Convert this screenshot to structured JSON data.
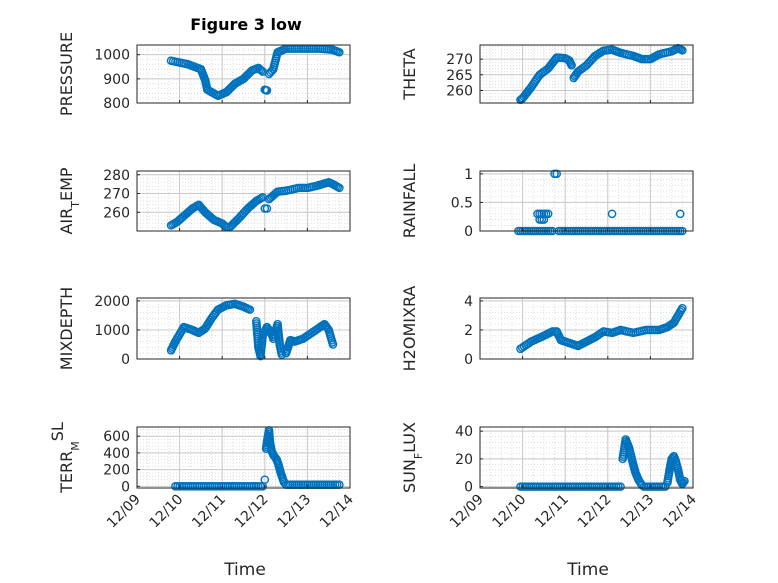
{
  "figure": {
    "title": "Figure 3 low",
    "xlabel": "Time",
    "x_tick_labels": [
      "12/09",
      "12/10",
      "12/11",
      "12/12",
      "12/13",
      "12/14"
    ],
    "marker_color": "#0072BD"
  },
  "chart_data": [
    {
      "type": "scatter",
      "ylabel_parts": [
        "PRESSURE"
      ],
      "xlim": [
        0,
        5
      ],
      "ylim": [
        800,
        1040
      ],
      "yticks": [
        800,
        900,
        1000
      ],
      "ytick_labels": [
        "800",
        "900",
        "1000"
      ],
      "grid": true,
      "segments": [
        [
          [
            0.8,
            975
          ],
          [
            1.2,
            960
          ],
          [
            1.5,
            940
          ],
          [
            1.6,
            895
          ],
          [
            1.65,
            855
          ],
          [
            1.9,
            830
          ],
          [
            2.1,
            845
          ],
          [
            2.3,
            880
          ],
          [
            2.5,
            900
          ],
          [
            2.7,
            935
          ],
          [
            2.85,
            945
          ],
          [
            2.95,
            930
          ]
        ],
        [
          [
            3.0,
            855
          ],
          [
            3.05,
            852
          ]
        ],
        [
          [
            3.1,
            920
          ],
          [
            3.2,
            940
          ],
          [
            3.3,
            1010
          ],
          [
            3.5,
            1025
          ],
          [
            3.7,
            1025
          ],
          [
            4.0,
            1025
          ],
          [
            4.3,
            1025
          ],
          [
            4.6,
            1020
          ],
          [
            4.75,
            1010
          ]
        ]
      ]
    },
    {
      "type": "scatter",
      "ylabel_parts": [
        "THETA"
      ],
      "xlim": [
        0,
        5
      ],
      "ylim": [
        256,
        274.5
      ],
      "yticks": [
        260,
        265,
        270
      ],
      "ytick_labels": [
        "260",
        "265",
        "270"
      ],
      "grid": true,
      "segments": [
        [
          [
            0.95,
            257
          ],
          [
            1.0,
            257.5
          ],
          [
            1.2,
            261
          ],
          [
            1.4,
            265
          ],
          [
            1.6,
            267
          ],
          [
            1.8,
            270.5
          ],
          [
            2.0,
            270.3
          ],
          [
            2.1,
            269.5
          ],
          [
            2.15,
            268
          ]
        ],
        [
          [
            2.2,
            264
          ],
          [
            2.3,
            266
          ],
          [
            2.5,
            268
          ],
          [
            2.7,
            271
          ],
          [
            2.9,
            272.7
          ],
          [
            3.1,
            273
          ],
          [
            3.3,
            272
          ],
          [
            3.6,
            271
          ],
          [
            3.8,
            270
          ],
          [
            4.0,
            270
          ],
          [
            4.2,
            271.5
          ],
          [
            4.5,
            272.5
          ],
          [
            4.65,
            273.5
          ],
          [
            4.75,
            272.8
          ]
        ]
      ]
    },
    {
      "type": "scatter",
      "ylabel_parts": [
        "AIR",
        "T",
        "EMP"
      ],
      "xlim": [
        0,
        5
      ],
      "ylim": [
        250,
        282
      ],
      "yticks": [
        260,
        270,
        280
      ],
      "ytick_labels": [
        "260",
        "270",
        "280"
      ],
      "grid": true,
      "segments": [
        [
          [
            0.8,
            253
          ],
          [
            0.95,
            255
          ],
          [
            1.1,
            258
          ],
          [
            1.3,
            262
          ],
          [
            1.45,
            264
          ],
          [
            1.6,
            260
          ],
          [
            1.8,
            256
          ],
          [
            2.0,
            254
          ],
          [
            2.1,
            252
          ],
          [
            2.2,
            252.5
          ],
          [
            2.4,
            257
          ],
          [
            2.6,
            262
          ],
          [
            2.8,
            266
          ],
          [
            2.95,
            268
          ]
        ],
        [
          [
            3.0,
            262
          ],
          [
            3.05,
            262
          ]
        ],
        [
          [
            3.1,
            267
          ],
          [
            3.3,
            271
          ],
          [
            3.5,
            271.5
          ],
          [
            3.8,
            273
          ],
          [
            4.0,
            273
          ],
          [
            4.2,
            274
          ],
          [
            4.5,
            276
          ],
          [
            4.6,
            275
          ],
          [
            4.75,
            273
          ]
        ]
      ]
    },
    {
      "type": "scatter",
      "ylabel_parts": [
        "RAINFALL"
      ],
      "xlim": [
        0,
        5
      ],
      "ylim": [
        0,
        1.05
      ],
      "yticks": [
        0,
        0.5,
        1
      ],
      "ytick_labels": [
        "0",
        "0.5",
        "1"
      ],
      "grid": true,
      "segments": [
        [
          [
            0.9,
            0
          ],
          [
            1.7,
            0
          ]
        ],
        [
          [
            1.85,
            0
          ],
          [
            4.75,
            0
          ]
        ],
        [
          [
            1.35,
            0.3
          ],
          [
            1.4,
            0.3
          ],
          [
            1.45,
            0.3
          ],
          [
            1.5,
            0.3
          ],
          [
            1.6,
            0.3
          ]
        ],
        [
          [
            1.4,
            0.2
          ],
          [
            1.5,
            0.2
          ]
        ],
        [
          [
            1.75,
            1
          ],
          [
            1.8,
            1
          ]
        ],
        [
          [
            3.1,
            0.3
          ]
        ],
        [
          [
            4.7,
            0.3
          ]
        ]
      ]
    },
    {
      "type": "scatter",
      "ylabel_parts": [
        "MIXDEPTH"
      ],
      "xlim": [
        0,
        5
      ],
      "ylim": [
        0,
        2100
      ],
      "yticks": [
        0,
        1000,
        2000
      ],
      "ytick_labels": [
        "0",
        "1000",
        "2000"
      ],
      "grid": true,
      "segments": [
        [
          [
            0.8,
            300
          ],
          [
            0.9,
            600
          ],
          [
            1.1,
            1100
          ],
          [
            1.3,
            1000
          ],
          [
            1.45,
            900
          ],
          [
            1.6,
            1050
          ],
          [
            1.75,
            1400
          ],
          [
            1.9,
            1700
          ],
          [
            2.1,
            1850
          ],
          [
            2.3,
            1900
          ],
          [
            2.5,
            1800
          ],
          [
            2.65,
            1700
          ]
        ],
        [
          [
            2.8,
            1300
          ],
          [
            2.85,
            400
          ],
          [
            2.9,
            100
          ],
          [
            2.95,
            800
          ],
          [
            3.05,
            1100
          ],
          [
            3.15,
            900
          ],
          [
            3.2,
            700
          ],
          [
            3.3,
            1200
          ],
          [
            3.35,
            500
          ],
          [
            3.4,
            150
          ]
        ],
        [
          [
            3.5,
            200
          ],
          [
            3.6,
            650
          ],
          [
            3.7,
            600
          ],
          [
            3.9,
            700
          ],
          [
            4.1,
            900
          ],
          [
            4.3,
            1100
          ],
          [
            4.4,
            1200
          ],
          [
            4.5,
            1000
          ],
          [
            4.6,
            500
          ]
        ]
      ]
    },
    {
      "type": "scatter",
      "ylabel_parts": [
        "H2OMIXRA"
      ],
      "xlim": [
        0,
        5
      ],
      "ylim": [
        0,
        4.2
      ],
      "yticks": [
        0,
        2,
        4
      ],
      "ytick_labels": [
        "0",
        "2",
        "4"
      ],
      "grid": true,
      "segments": [
        [
          [
            0.95,
            0.7
          ],
          [
            1.2,
            1.2
          ],
          [
            1.5,
            1.6
          ],
          [
            1.7,
            1.9
          ],
          [
            1.8,
            1.9
          ],
          [
            1.9,
            1.3
          ],
          [
            2.1,
            1.1
          ],
          [
            2.3,
            0.9
          ],
          [
            2.5,
            1.2
          ],
          [
            2.7,
            1.5
          ],
          [
            2.9,
            1.9
          ],
          [
            3.1,
            1.8
          ],
          [
            3.3,
            2.0
          ],
          [
            3.6,
            1.8
          ],
          [
            3.9,
            2.0
          ],
          [
            4.2,
            2.0
          ],
          [
            4.4,
            2.2
          ],
          [
            4.55,
            2.5
          ],
          [
            4.65,
            3.0
          ],
          [
            4.75,
            3.5
          ]
        ]
      ]
    },
    {
      "type": "scatter",
      "ylabel_parts": [
        "TERR",
        "M",
        "SL"
      ],
      "xlim": [
        0,
        5
      ],
      "ylim": [
        -20,
        710
      ],
      "yticks": [
        0,
        200,
        400,
        600
      ],
      "ytick_labels": [
        "0",
        "200",
        "400",
        "600"
      ],
      "grid": true,
      "segments": [
        [
          [
            0.9,
            0
          ],
          [
            2.95,
            0
          ]
        ],
        [
          [
            3.0,
            80
          ]
        ],
        [
          [
            3.03,
            450
          ],
          [
            3.06,
            560
          ],
          [
            3.1,
            670
          ],
          [
            3.12,
            530
          ],
          [
            3.16,
            420
          ],
          [
            3.22,
            360
          ],
          [
            3.28,
            320
          ],
          [
            3.32,
            260
          ],
          [
            3.38,
            150
          ],
          [
            3.45,
            50
          ]
        ],
        [
          [
            3.5,
            20
          ],
          [
            4.75,
            20
          ]
        ]
      ]
    },
    {
      "type": "scatter",
      "ylabel_parts": [
        "SUN",
        "F",
        "LUX"
      ],
      "xlim": [
        0,
        5
      ],
      "ylim": [
        -1,
        43
      ],
      "yticks": [
        0,
        20,
        40
      ],
      "ytick_labels": [
        "0",
        "20",
        "40"
      ],
      "grid": true,
      "segments": [
        [
          [
            0.95,
            0
          ],
          [
            3.3,
            0
          ]
        ],
        [
          [
            3.35,
            20
          ],
          [
            3.42,
            34
          ],
          [
            3.5,
            28
          ],
          [
            3.58,
            18
          ],
          [
            3.65,
            10
          ],
          [
            3.72,
            5
          ],
          [
            3.8,
            1
          ]
        ],
        [
          [
            3.85,
            0
          ],
          [
            4.35,
            0
          ]
        ],
        [
          [
            4.4,
            3
          ],
          [
            4.45,
            12
          ],
          [
            4.5,
            20
          ],
          [
            4.55,
            22
          ],
          [
            4.6,
            18
          ],
          [
            4.65,
            12
          ],
          [
            4.7,
            5
          ],
          [
            4.75,
            2
          ],
          [
            4.8,
            4
          ]
        ]
      ]
    }
  ]
}
